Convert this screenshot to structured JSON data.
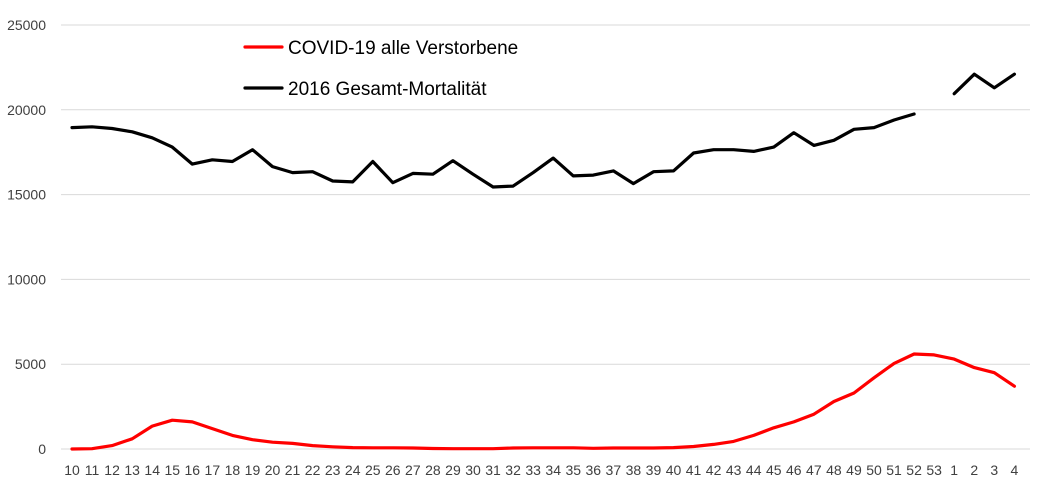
{
  "chart_data": {
    "type": "line",
    "title": "",
    "xlabel": "",
    "ylabel": "",
    "ylim": [
      0,
      25000
    ],
    "yticks": [
      "0",
      "5000",
      "10000",
      "15000",
      "20000",
      "25000"
    ],
    "grid": true,
    "legend_position": "top-center",
    "categories": [
      "10",
      "11",
      "12",
      "13",
      "14",
      "15",
      "16",
      "17",
      "18",
      "19",
      "20",
      "21",
      "22",
      "23",
      "24",
      "25",
      "26",
      "27",
      "28",
      "29",
      "30",
      "31",
      "32",
      "33",
      "34",
      "35",
      "36",
      "37",
      "38",
      "39",
      "40",
      "41",
      "42",
      "43",
      "44",
      "45",
      "46",
      "47",
      "48",
      "49",
      "50",
      "51",
      "52",
      "53",
      "1",
      "2",
      "3",
      "4"
    ],
    "series": [
      {
        "name": "COVID-19 alle Verstorbene",
        "color": "#ff0000",
        "values": [
          0,
          20,
          200,
          600,
          1350,
          1700,
          1600,
          1200,
          800,
          550,
          400,
          330,
          200,
          130,
          80,
          70,
          70,
          60,
          30,
          20,
          20,
          20,
          60,
          70,
          70,
          70,
          40,
          60,
          60,
          60,
          80,
          150,
          270,
          450,
          800,
          1250,
          1600,
          2050,
          2800,
          3300,
          4200,
          5050,
          5600,
          5550,
          5300,
          4800,
          4500,
          3700
        ]
      },
      {
        "name": "2016 Gesamt-Mortalität",
        "color": "#000000",
        "values": [
          18950,
          19000,
          18900,
          18700,
          18350,
          17800,
          16800,
          17050,
          16950,
          17650,
          16650,
          16300,
          16350,
          15800,
          15750,
          16950,
          15700,
          16250,
          16200,
          17000,
          16200,
          15450,
          15500,
          16300,
          17150,
          16100,
          16150,
          16400,
          15650,
          16350,
          16400,
          17450,
          17650,
          17650,
          17550,
          17800,
          18650,
          17900,
          18200,
          18850,
          18950,
          19400,
          19750,
          null,
          20950,
          22100,
          21300,
          22100
        ]
      }
    ]
  }
}
